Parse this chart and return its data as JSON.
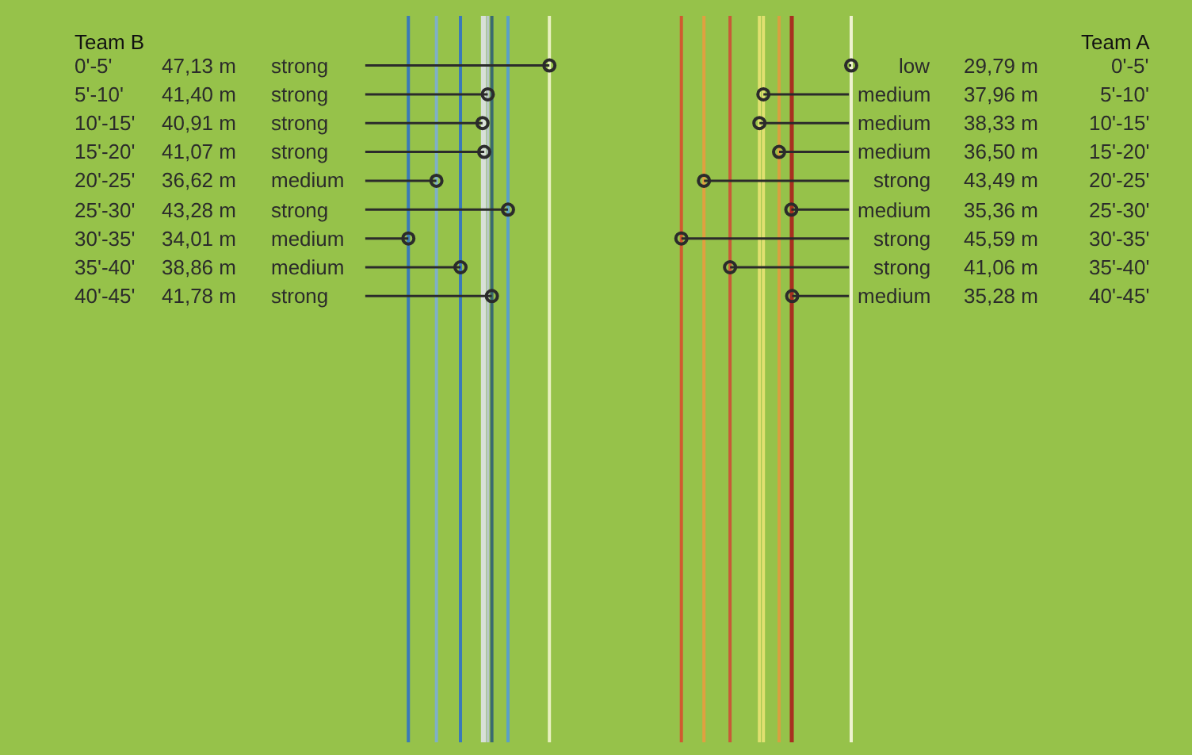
{
  "chart_data": {
    "type": "other",
    "categories": [
      "0'-5'",
      "5'-10'",
      "10'-15'",
      "15'-20'",
      "20'-25'",
      "25'-30'",
      "30'-35'",
      "35'-40'",
      "40'-45'"
    ],
    "legend": false,
    "series": [
      {
        "name": "Team B",
        "color": "#2b2b2b",
        "values": [
          47.13,
          41.4,
          40.91,
          41.07,
          36.62,
          43.28,
          34.01,
          38.86,
          41.78
        ],
        "value_labels": [
          "47,13 m",
          "41,40 m",
          "40,91 m",
          "41,07 m",
          "36,62 m",
          "43,28 m",
          "34,01 m",
          "38,86 m",
          "41,78 m"
        ],
        "colors": [
          "#e8f0c0",
          "#b8c8c8",
          "#d8e0d8",
          "#d8e0d8",
          "#7fb0c8",
          "#5aa0c8",
          "#3a7ab8",
          "#3a7ab8",
          "#3a6a70"
        ]
      },
      {
        "name": "Team A",
        "color": "#2b2b2b",
        "axis": "x2",
        "values": [
          29.79,
          37.96,
          38.33,
          36.5,
          43.49,
          35.36,
          45.59,
          41.06,
          35.28
        ],
        "value_labels": [
          "29,79 m",
          "37,96 m",
          "38,33 m",
          "36,50 m",
          "43,49 m",
          "35,36 m",
          "45,59 m",
          "41,06 m",
          "35,28 m"
        ],
        "colors": [
          "#eef2d0",
          "#e0e070",
          "#e0e070",
          "#d8a040",
          "#e0a040",
          "#a83020",
          "#d05a30",
          "#c85a38",
          "#a83020"
        ]
      }
    ],
    "annotations": [
      "strong",
      "strong",
      "strong",
      "strong",
      "medium",
      "strong",
      "medium",
      "medium",
      "strong",
      "low",
      "medium",
      "medium",
      "medium",
      "strong",
      "medium",
      "strong",
      "strong",
      "medium"
    ]
  }
}
